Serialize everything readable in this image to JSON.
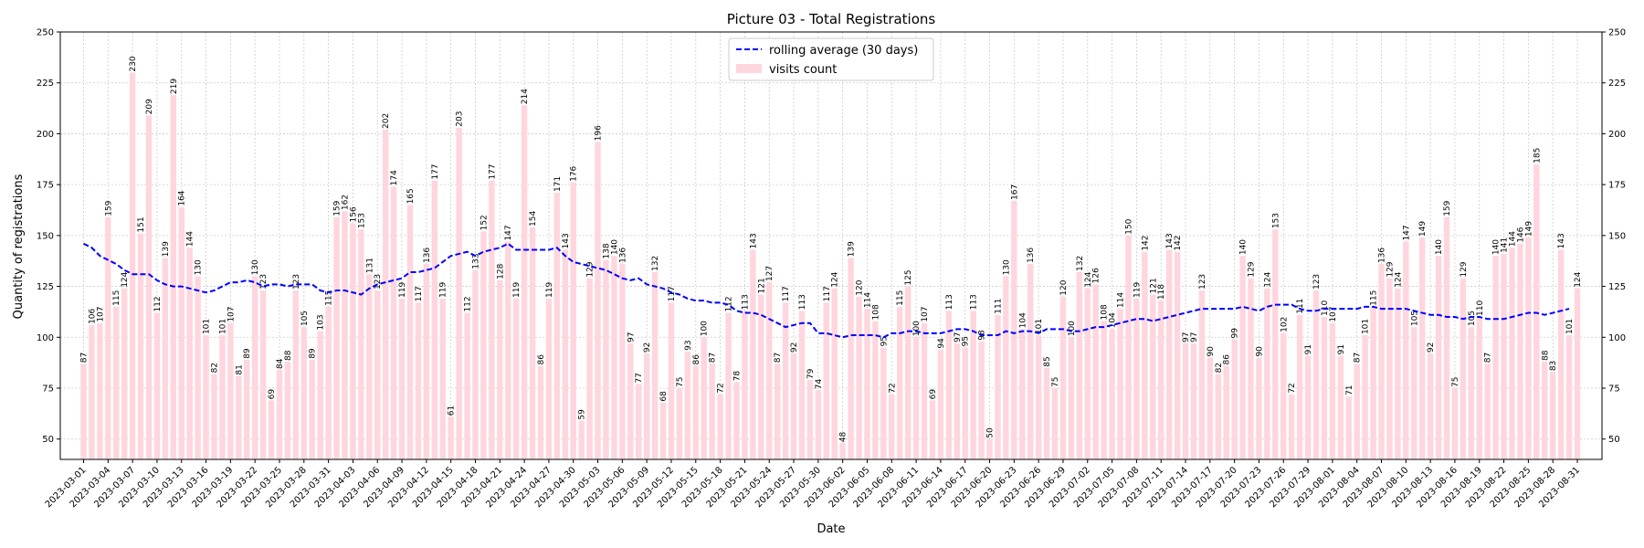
{
  "chart_data": {
    "type": "bar",
    "title": "Picture 03 - Total Registrations",
    "xlabel": "Date",
    "ylabel": "Quantity of registrations",
    "ylim": [
      40,
      250
    ],
    "yticks": [
      50,
      75,
      100,
      125,
      150,
      175,
      200,
      225,
      250
    ],
    "grid": true,
    "legend_position": "top-center",
    "start_date": "2023-03-01",
    "xtick_labels": [
      "2023-03-01",
      "2023-03-04",
      "2023-03-07",
      "2023-03-10",
      "2023-03-13",
      "2023-03-16",
      "2023-03-19",
      "2023-03-22",
      "2023-03-25",
      "2023-03-28",
      "2023-03-31",
      "2023-04-03",
      "2023-04-06",
      "2023-04-09",
      "2023-04-12",
      "2023-04-15",
      "2023-04-18",
      "2023-04-21",
      "2023-04-24",
      "2023-04-27",
      "2023-04-30",
      "2023-05-03",
      "2023-05-06",
      "2023-05-09",
      "2023-05-12",
      "2023-05-15",
      "2023-05-18",
      "2023-05-21",
      "2023-05-24",
      "2023-05-27",
      "2023-05-30",
      "2023-06-02",
      "2023-06-05",
      "2023-06-08",
      "2023-06-11",
      "2023-06-14",
      "2023-06-17",
      "2023-06-20",
      "2023-06-23",
      "2023-06-26",
      "2023-06-29",
      "2023-07-02",
      "2023-07-05",
      "2023-07-08",
      "2023-07-11",
      "2023-07-14",
      "2023-07-17",
      "2023-07-20",
      "2023-07-23",
      "2023-07-26",
      "2023-07-29",
      "2023-08-01",
      "2023-08-04",
      "2023-08-07",
      "2023-08-10",
      "2023-08-13",
      "2023-08-16",
      "2023-08-19",
      "2023-08-22",
      "2023-08-25",
      "2023-08-28",
      "2023-08-31"
    ],
    "series": [
      {
        "name": "visits count",
        "type": "bar",
        "color": "#ffd6dd",
        "values": [
          87,
          106,
          107,
          159,
          115,
          124,
          230,
          151,
          209,
          112,
          139,
          219,
          164,
          144,
          130,
          101,
          82,
          101,
          107,
          81,
          89,
          130,
          123,
          69,
          84,
          88,
          123,
          105,
          89,
          103,
          115,
          159,
          162,
          156,
          153,
          131,
          123,
          202,
          174,
          119,
          165,
          117,
          136,
          177,
          119,
          61,
          203,
          112,
          133,
          152,
          177,
          128,
          147,
          119,
          214,
          154,
          86,
          119,
          171,
          143,
          176,
          59,
          129,
          196,
          138,
          140,
          136,
          97,
          77,
          92,
          132,
          68,
          117,
          75,
          93,
          86,
          100,
          87,
          72,
          112,
          78,
          113,
          143,
          121,
          127,
          87,
          117,
          92,
          113,
          79,
          74,
          117,
          124,
          48,
          139,
          120,
          114,
          108,
          95,
          72,
          115,
          125,
          100,
          107,
          69,
          94,
          113,
          97,
          95,
          113,
          98,
          50,
          111,
          130,
          167,
          104,
          136,
          101,
          85,
          75,
          120,
          100,
          132,
          124,
          126,
          108,
          104,
          114,
          150,
          119,
          142,
          121,
          118,
          143,
          142,
          97,
          97,
          123,
          90,
          82,
          86,
          99,
          140,
          129,
          90,
          124,
          153,
          102,
          72,
          111,
          91,
          123,
          110,
          107,
          91,
          71,
          87,
          101,
          115,
          136,
          129,
          124,
          147,
          105,
          149,
          92,
          140,
          159,
          75,
          129,
          105,
          110,
          87,
          140,
          141,
          144,
          146,
          149,
          185,
          88,
          83,
          143,
          101,
          124
        ]
      },
      {
        "name": "rolling average (30 days)",
        "type": "line",
        "style": "dashed",
        "color": "#0000ff",
        "values": [
          146,
          144,
          140,
          138,
          136,
          133,
          131,
          131,
          131,
          128,
          126,
          125,
          125,
          124,
          123,
          122,
          123,
          125,
          127,
          127,
          128,
          127,
          125,
          126,
          126,
          125,
          126,
          126,
          126,
          123,
          122,
          123,
          123,
          122,
          121,
          124,
          126,
          127,
          128,
          129,
          132,
          132,
          133,
          134,
          137,
          140,
          141,
          142,
          140,
          142,
          143,
          144,
          146,
          143,
          143,
          143,
          143,
          143,
          144,
          140,
          137,
          136,
          135,
          134,
          133,
          131,
          129,
          128,
          129,
          126,
          125,
          124,
          122,
          121,
          119,
          118,
          118,
          117,
          117,
          116,
          113,
          112,
          112,
          111,
          109,
          107,
          105,
          106,
          107,
          107,
          102,
          102,
          101,
          100,
          101,
          101,
          101,
          101,
          100,
          102,
          102,
          103,
          103,
          102,
          102,
          102,
          103,
          104,
          104,
          103,
          101,
          101,
          101,
          103,
          102,
          103,
          103,
          102,
          104,
          104,
          104,
          103,
          103,
          104,
          105,
          105,
          106,
          107,
          108,
          109,
          109,
          108,
          109,
          110,
          111,
          112,
          113,
          114,
          114,
          114,
          114,
          114,
          115,
          114,
          113,
          115,
          116,
          116,
          116,
          114,
          113,
          113,
          114,
          114,
          114,
          114,
          114,
          115,
          115,
          114,
          114,
          114,
          114,
          113,
          112,
          111,
          111,
          110,
          110,
          109,
          110,
          110,
          109,
          109,
          109,
          110,
          111,
          112,
          112,
          111,
          112,
          113,
          114
        ]
      }
    ]
  }
}
